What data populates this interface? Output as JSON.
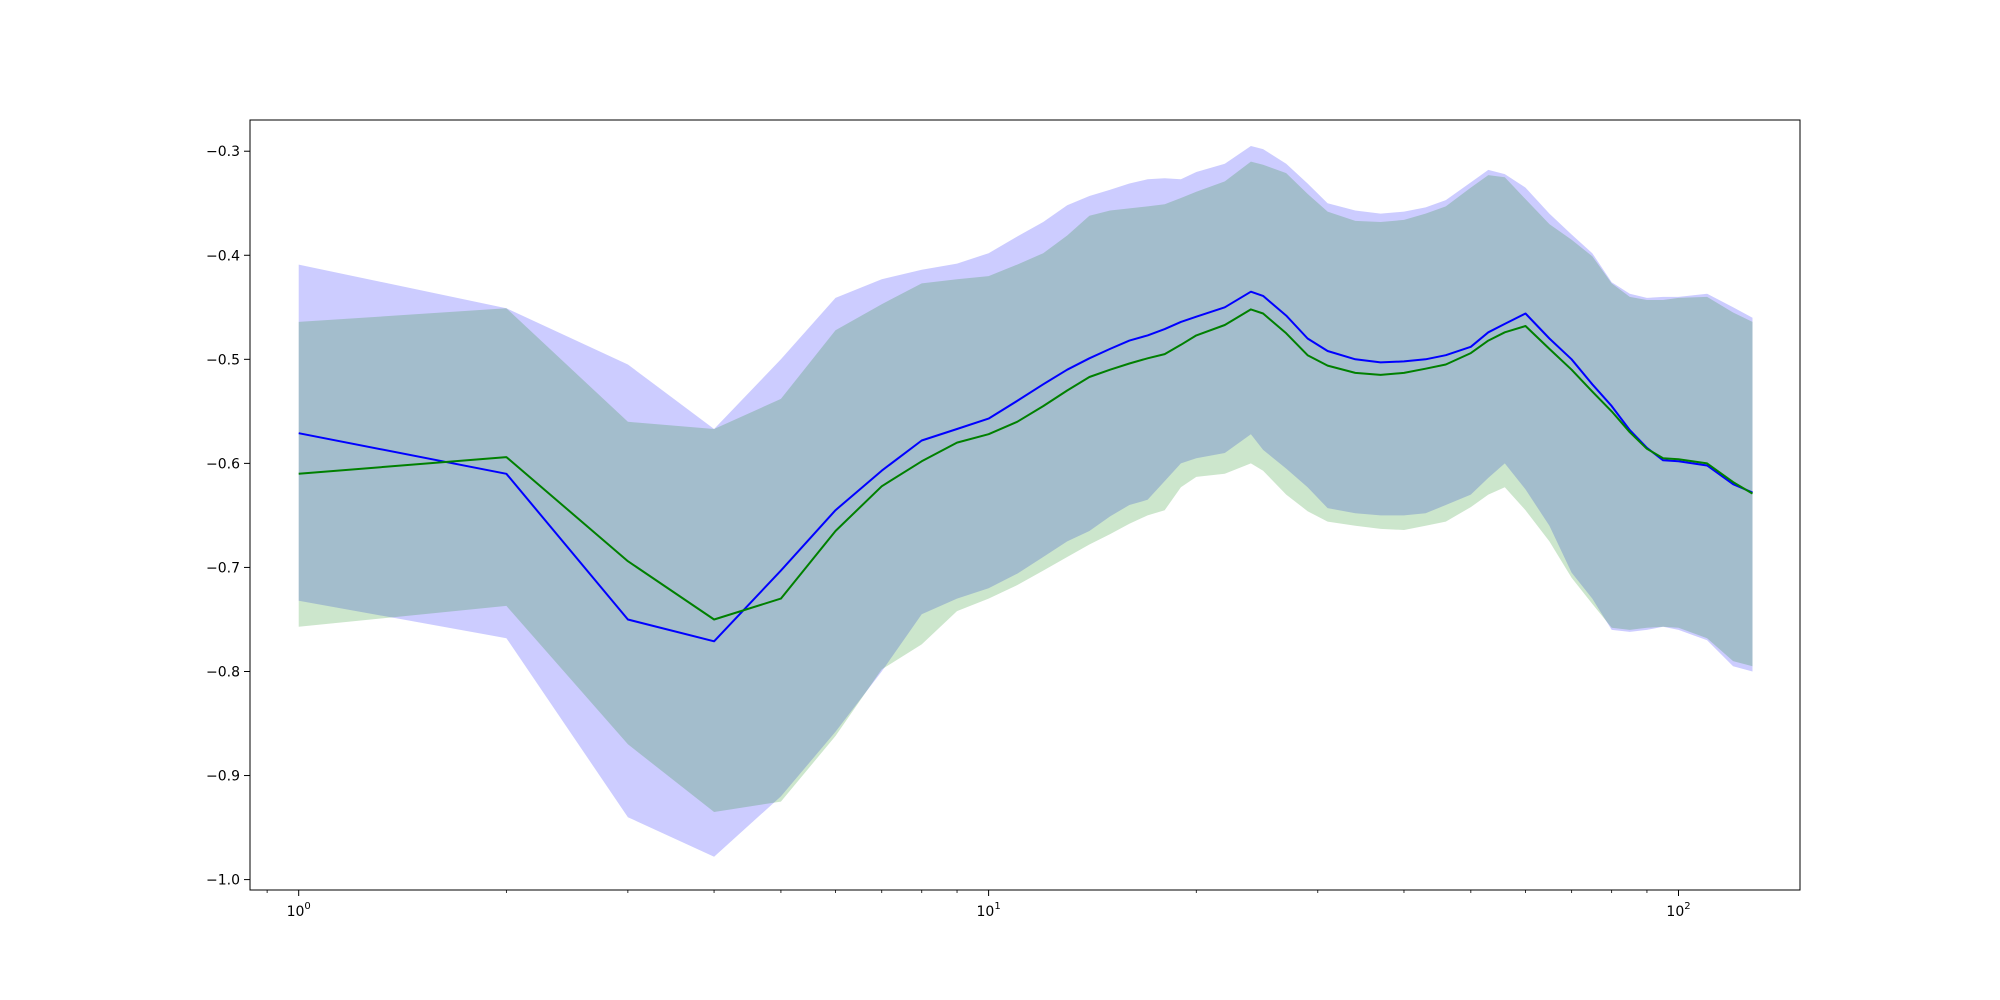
{
  "chart_data": {
    "type": "line",
    "title": "",
    "xlabel": "",
    "ylabel": "",
    "xscale": "log",
    "xlim": [
      0.85,
      150
    ],
    "ylim": [
      -1.01,
      -0.27
    ],
    "grid": false,
    "x_ticks": [
      {
        "value": 1,
        "base": "10",
        "exp": "0"
      },
      {
        "value": 10,
        "base": "10",
        "exp": "1"
      },
      {
        "value": 100,
        "base": "10",
        "exp": "2"
      }
    ],
    "y_ticks": [
      {
        "value": -0.3,
        "label": "−0.3"
      },
      {
        "value": -0.4,
        "label": "−0.4"
      },
      {
        "value": -0.5,
        "label": "−0.5"
      },
      {
        "value": -0.6,
        "label": "−0.6"
      },
      {
        "value": -0.7,
        "label": "−0.7"
      },
      {
        "value": -0.8,
        "label": "−0.8"
      },
      {
        "value": -0.9,
        "label": "−0.9"
      },
      {
        "value": -1.0,
        "label": "−1.0"
      }
    ],
    "x": [
      1,
      2,
      3,
      4,
      5,
      6,
      7,
      8,
      9,
      10,
      11,
      12,
      13,
      14,
      15,
      16,
      17,
      18,
      19,
      20,
      22,
      24,
      25,
      27,
      29,
      31,
      34,
      37,
      40,
      43,
      46,
      50,
      53,
      56,
      60,
      65,
      70,
      75,
      80,
      85,
      90,
      95,
      100,
      110,
      120,
      128
    ],
    "series": [
      {
        "color": "#0000ff",
        "band_color": "#0000ff",
        "band_opacity": 0.2,
        "mean": [
          -0.571,
          -0.61,
          -0.75,
          -0.771,
          -0.703,
          -0.645,
          -0.607,
          -0.578,
          -0.567,
          -0.557,
          -0.54,
          -0.524,
          -0.51,
          -0.499,
          -0.49,
          -0.482,
          -0.477,
          -0.471,
          -0.464,
          -0.459,
          -0.45,
          -0.435,
          -0.439,
          -0.458,
          -0.48,
          -0.492,
          -0.5,
          -0.503,
          -0.502,
          -0.5,
          -0.496,
          -0.488,
          -0.474,
          -0.466,
          -0.456,
          -0.48,
          -0.5,
          -0.524,
          -0.545,
          -0.568,
          -0.585,
          -0.597,
          -0.598,
          -0.602,
          -0.62,
          -0.628
        ],
        "upper": [
          -0.409,
          -0.451,
          -0.505,
          -0.567,
          -0.5,
          -0.441,
          -0.423,
          -0.414,
          -0.408,
          -0.398,
          -0.382,
          -0.368,
          -0.352,
          -0.343,
          -0.337,
          -0.331,
          -0.327,
          -0.326,
          -0.327,
          -0.32,
          -0.312,
          -0.295,
          -0.298,
          -0.312,
          -0.331,
          -0.35,
          -0.357,
          -0.36,
          -0.358,
          -0.354,
          -0.347,
          -0.33,
          -0.318,
          -0.322,
          -0.335,
          -0.36,
          -0.38,
          -0.398,
          -0.426,
          -0.437,
          -0.441,
          -0.44,
          -0.44,
          -0.437,
          -0.45,
          -0.46
        ],
        "lower": [
          -0.732,
          -0.768,
          -0.94,
          -0.978,
          -0.92,
          -0.858,
          -0.8,
          -0.745,
          -0.73,
          -0.72,
          -0.706,
          -0.69,
          -0.675,
          -0.665,
          -0.651,
          -0.64,
          -0.635,
          -0.617,
          -0.6,
          -0.595,
          -0.59,
          -0.572,
          -0.587,
          -0.605,
          -0.623,
          -0.643,
          -0.648,
          -0.65,
          -0.65,
          -0.648,
          -0.64,
          -0.63,
          -0.614,
          -0.6,
          -0.625,
          -0.66,
          -0.705,
          -0.73,
          -0.76,
          -0.762,
          -0.76,
          -0.757,
          -0.76,
          -0.77,
          -0.795,
          -0.8
        ]
      },
      {
        "color": "#008000",
        "band_color": "#008000",
        "band_opacity": 0.2,
        "mean": [
          -0.61,
          -0.594,
          -0.694,
          -0.75,
          -0.73,
          -0.665,
          -0.622,
          -0.598,
          -0.58,
          -0.572,
          -0.56,
          -0.545,
          -0.53,
          -0.517,
          -0.51,
          -0.504,
          -0.499,
          -0.495,
          -0.486,
          -0.477,
          -0.467,
          -0.452,
          -0.456,
          -0.475,
          -0.496,
          -0.506,
          -0.513,
          -0.515,
          -0.513,
          -0.509,
          -0.505,
          -0.494,
          -0.482,
          -0.474,
          -0.468,
          -0.49,
          -0.51,
          -0.531,
          -0.55,
          -0.57,
          -0.586,
          -0.595,
          -0.596,
          -0.6,
          -0.618,
          -0.629
        ],
        "upper": [
          -0.464,
          -0.451,
          -0.56,
          -0.567,
          -0.538,
          -0.472,
          -0.447,
          -0.427,
          -0.423,
          -0.42,
          -0.409,
          -0.398,
          -0.381,
          -0.362,
          -0.357,
          -0.355,
          -0.353,
          -0.351,
          -0.345,
          -0.339,
          -0.329,
          -0.31,
          -0.313,
          -0.321,
          -0.341,
          -0.358,
          -0.367,
          -0.368,
          -0.366,
          -0.36,
          -0.353,
          -0.335,
          -0.323,
          -0.325,
          -0.346,
          -0.37,
          -0.385,
          -0.401,
          -0.427,
          -0.44,
          -0.443,
          -0.443,
          -0.441,
          -0.44,
          -0.455,
          -0.464
        ],
        "lower": [
          -0.757,
          -0.737,
          -0.87,
          -0.935,
          -0.925,
          -0.862,
          -0.798,
          -0.774,
          -0.742,
          -0.73,
          -0.717,
          -0.703,
          -0.69,
          -0.678,
          -0.668,
          -0.658,
          -0.65,
          -0.645,
          -0.623,
          -0.613,
          -0.61,
          -0.6,
          -0.607,
          -0.63,
          -0.646,
          -0.656,
          -0.66,
          -0.663,
          -0.664,
          -0.66,
          -0.656,
          -0.642,
          -0.63,
          -0.623,
          -0.645,
          -0.675,
          -0.71,
          -0.735,
          -0.758,
          -0.76,
          -0.758,
          -0.757,
          -0.758,
          -0.768,
          -0.79,
          -0.795
        ]
      }
    ]
  }
}
